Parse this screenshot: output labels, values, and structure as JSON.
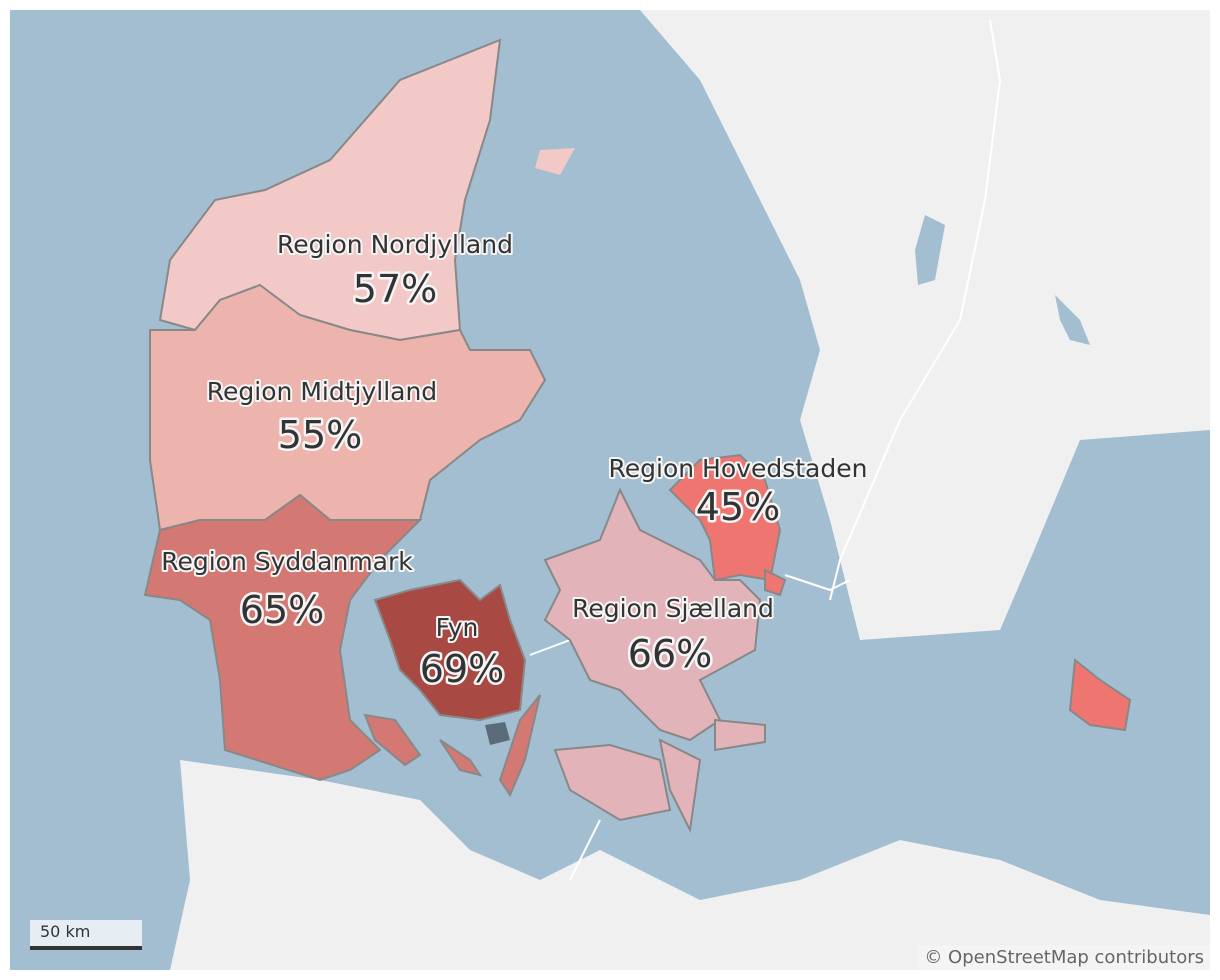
{
  "colors": {
    "water": "#a2bed0",
    "land": "#f0f0f0",
    "Region Nordjylland": "#f2c9c7",
    "Region Midtjylland": "#ecb4ad",
    "Region Syddanmark": "#d47873",
    "Fyn": "#a84a43",
    "Region Sjælland": "#e2b4ba",
    "Region Hovedstaden": "#ef7670"
  },
  "regions": [
    {
      "name": "Region Nordjylland",
      "value": "57%"
    },
    {
      "name": "Region Midtjylland",
      "value": "55%"
    },
    {
      "name": "Region Syddanmark",
      "value": "65%"
    },
    {
      "name": "Fyn",
      "value": "69%"
    },
    {
      "name": "Region Sjælland",
      "value": "66%"
    },
    {
      "name": "Region Hovedstaden",
      "value": "45%"
    }
  ],
  "scale_bar": "50 km",
  "attribution": "© OpenStreetMap contributors"
}
